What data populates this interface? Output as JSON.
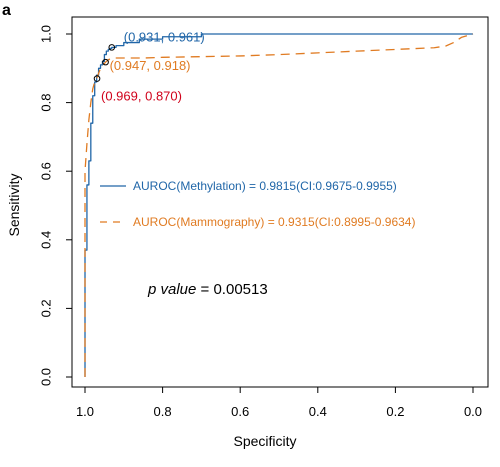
{
  "panel_label": "a",
  "colors": {
    "methylation": "#2066a8",
    "mammography": "#e07b22",
    "threshold_red": "#d0021b",
    "axis": "#000000"
  },
  "chart_data": {
    "type": "line",
    "xlabel": "Specificity",
    "ylabel": "Sensitivity",
    "xlim": [
      1.0,
      0.0
    ],
    "ylim": [
      0.0,
      1.0
    ],
    "x_reversed": true,
    "x_ticks": [
      "1.0",
      "0.8",
      "0.6",
      "0.4",
      "0.2",
      "0.0"
    ],
    "y_ticks": [
      "0.0",
      "0.2",
      "0.4",
      "0.6",
      "0.8",
      "1.0"
    ],
    "grid": false,
    "legend_position": "center-left",
    "series": [
      {
        "name": "AUROC(Methylation) = 0.9815(CI:0.9675-0.9955)",
        "style": "solid",
        "color": "#2066a8",
        "x": [
          1.0,
          1.0,
          0.995,
          0.995,
          0.99,
          0.99,
          0.985,
          0.985,
          0.98,
          0.98,
          0.975,
          0.975,
          0.97,
          0.97,
          0.965,
          0.965,
          0.96,
          0.96,
          0.955,
          0.955,
          0.95,
          0.95,
          0.945,
          0.945,
          0.94,
          0.94,
          0.935,
          0.935,
          0.931,
          0.931,
          0.92,
          0.92,
          0.9,
          0.9,
          0.86,
          0.86,
          0.8,
          0.8,
          0.7,
          0.7,
          0.0
        ],
        "y": [
          0.0,
          0.37,
          0.37,
          0.56,
          0.56,
          0.63,
          0.63,
          0.74,
          0.74,
          0.82,
          0.82,
          0.86,
          0.86,
          0.88,
          0.88,
          0.9,
          0.9,
          0.91,
          0.91,
          0.92,
          0.92,
          0.94,
          0.94,
          0.95,
          0.95,
          0.955,
          0.955,
          0.958,
          0.958,
          0.961,
          0.961,
          0.966,
          0.966,
          0.975,
          0.975,
          0.985,
          0.985,
          0.992,
          0.992,
          1.0,
          1.0
        ]
      },
      {
        "name": "AUROC(Mammography) = 0.9315(CI:0.8995-0.9634)",
        "style": "dashed",
        "color": "#e07b22",
        "x": [
          1.0,
          1.0,
          0.995,
          0.99,
          0.985,
          0.98,
          0.975,
          0.97,
          0.96,
          0.947,
          0.94,
          0.93,
          0.9,
          0.85,
          0.8,
          0.7,
          0.6,
          0.5,
          0.4,
          0.3,
          0.2,
          0.1,
          0.07,
          0.05,
          0.03,
          0.0
        ],
        "y": [
          0.0,
          0.6,
          0.68,
          0.75,
          0.8,
          0.84,
          0.86,
          0.87,
          0.9,
          0.918,
          0.925,
          0.93,
          0.93,
          0.93,
          0.932,
          0.934,
          0.936,
          0.94,
          0.945,
          0.95,
          0.955,
          0.96,
          0.965,
          0.975,
          0.99,
          1.0
        ]
      }
    ],
    "points": [
      {
        "label": "(0.931, 0.961)",
        "x": 0.931,
        "y": 0.961,
        "color": "#2066a8"
      },
      {
        "label": "(0.947, 0.918)",
        "x": 0.947,
        "y": 0.918,
        "color": "#e07b22"
      },
      {
        "label": "(0.969, 0.870)",
        "x": 0.969,
        "y": 0.87,
        "color": "#d0021b"
      }
    ],
    "annotation": {
      "italic": "p value",
      "text": " = 0.00513"
    }
  }
}
